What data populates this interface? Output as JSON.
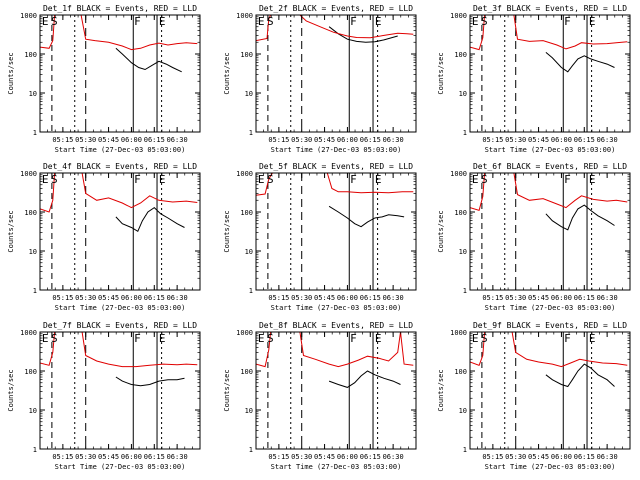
{
  "figure": {
    "ylabel": "Counts/sec",
    "xlabel": "Start Time (27-Dec-03 05:03:00)",
    "legend_text": "BLACK = Events, RED = LLD",
    "colors": {
      "events": "#000000",
      "lld": "#e00000",
      "axes": "#000000"
    },
    "y_ticks": [
      "1",
      "10",
      "100",
      "1000"
    ],
    "x_ticks": [
      "05:15",
      "05:30",
      "05:45",
      "06:00",
      "06:15",
      "06:30"
    ],
    "markers": [
      "E",
      "S",
      "F",
      "E"
    ]
  },
  "chart_data": [
    {
      "type": "line",
      "title": "Det_1f BLACK = Events, RED = LLD",
      "ylim": [
        1,
        1000
      ],
      "yscale": "log",
      "series": [
        {
          "name": "Events",
          "color": "#000000",
          "points": [
            [
              5.83,
              140
            ],
            [
              5.9,
              100
            ],
            [
              6.0,
              60
            ],
            [
              6.08,
              45
            ],
            [
              6.15,
              40
            ],
            [
              6.22,
              50
            ],
            [
              6.3,
              65
            ],
            [
              6.38,
              55
            ],
            [
              6.45,
              45
            ],
            [
              6.55,
              35
            ]
          ]
        },
        {
          "name": "LLD",
          "color": "#e00000",
          "points": [
            [
              5.0,
              150
            ],
            [
              5.1,
              140
            ],
            [
              5.14,
              220
            ],
            [
              5.16,
              1000
            ],
            [
              5.45,
              1000
            ],
            [
              5.5,
              240
            ],
            [
              5.6,
              220
            ],
            [
              5.75,
              200
            ],
            [
              5.9,
              160
            ],
            [
              6.0,
              130
            ],
            [
              6.1,
              140
            ],
            [
              6.2,
              170
            ],
            [
              6.3,
              190
            ],
            [
              6.4,
              170
            ],
            [
              6.5,
              185
            ],
            [
              6.6,
              195
            ],
            [
              6.72,
              185
            ]
          ]
        }
      ]
    },
    {
      "type": "line",
      "title": "Det_2f BLACK = Events, RED = LLD",
      "ylim": [
        1,
        1000
      ],
      "yscale": "log",
      "series": [
        {
          "name": "Events",
          "color": "#000000",
          "points": [
            [
              5.8,
              500
            ],
            [
              5.9,
              330
            ],
            [
              6.0,
              240
            ],
            [
              6.1,
              210
            ],
            [
              6.2,
              200
            ],
            [
              6.3,
              205
            ],
            [
              6.4,
              230
            ],
            [
              6.55,
              290
            ]
          ]
        },
        {
          "name": "LLD",
          "color": "#e00000",
          "points": [
            [
              5.0,
              220
            ],
            [
              5.12,
              250
            ],
            [
              5.14,
              800
            ],
            [
              5.16,
              1000
            ],
            [
              5.48,
              1000
            ],
            [
              5.55,
              700
            ],
            [
              5.7,
              500
            ],
            [
              5.85,
              360
            ],
            [
              6.0,
              290
            ],
            [
              6.1,
              265
            ],
            [
              6.25,
              260
            ],
            [
              6.4,
              300
            ],
            [
              6.55,
              340
            ],
            [
              6.65,
              330
            ],
            [
              6.72,
              320
            ]
          ]
        }
      ]
    },
    {
      "type": "line",
      "title": "Det_3f BLACK = Events, RED = LLD",
      "ylim": [
        1,
        1000
      ],
      "yscale": "log",
      "series": [
        {
          "name": "Events",
          "color": "#000000",
          "points": [
            [
              5.83,
              110
            ],
            [
              5.9,
              80
            ],
            [
              6.0,
              45
            ],
            [
              6.07,
              35
            ],
            [
              6.12,
              50
            ],
            [
              6.18,
              75
            ],
            [
              6.25,
              90
            ],
            [
              6.32,
              75
            ],
            [
              6.4,
              65
            ],
            [
              6.5,
              55
            ],
            [
              6.58,
              45
            ]
          ]
        },
        {
          "name": "LLD",
          "color": "#e00000",
          "points": [
            [
              5.0,
              150
            ],
            [
              5.1,
              130
            ],
            [
              5.14,
              260
            ],
            [
              5.16,
              1000
            ],
            [
              5.48,
              1000
            ],
            [
              5.52,
              240
            ],
            [
              5.65,
              210
            ],
            [
              5.8,
              220
            ],
            [
              5.95,
              170
            ],
            [
              6.05,
              135
            ],
            [
              6.15,
              160
            ],
            [
              6.22,
              195
            ],
            [
              6.35,
              180
            ],
            [
              6.5,
              185
            ],
            [
              6.6,
              195
            ],
            [
              6.72,
              205
            ]
          ]
        }
      ]
    },
    {
      "type": "line",
      "title": "Det_4f BLACK = Events, RED = LLD",
      "ylim": [
        1,
        1000
      ],
      "yscale": "log",
      "series": [
        {
          "name": "Events",
          "color": "#000000",
          "points": [
            [
              5.83,
              75
            ],
            [
              5.9,
              50
            ],
            [
              6.0,
              40
            ],
            [
              6.07,
              32
            ],
            [
              6.12,
              60
            ],
            [
              6.18,
              100
            ],
            [
              6.25,
              130
            ],
            [
              6.32,
              90
            ],
            [
              6.4,
              70
            ],
            [
              6.5,
              50
            ],
            [
              6.58,
              40
            ]
          ]
        },
        {
          "name": "LLD",
          "color": "#e00000",
          "points": [
            [
              5.0,
              120
            ],
            [
              5.1,
              100
            ],
            [
              5.14,
              200
            ],
            [
              5.16,
              1000
            ],
            [
              5.46,
              1000
            ],
            [
              5.5,
              300
            ],
            [
              5.62,
              200
            ],
            [
              5.75,
              230
            ],
            [
              5.9,
              170
            ],
            [
              6.0,
              130
            ],
            [
              6.1,
              170
            ],
            [
              6.2,
              260
            ],
            [
              6.3,
              200
            ],
            [
              6.45,
              180
            ],
            [
              6.6,
              190
            ],
            [
              6.72,
              175
            ]
          ]
        }
      ]
    },
    {
      "type": "line",
      "title": "Det_5f BLACK = Events, RED = LLD",
      "ylim": [
        1,
        1000
      ],
      "yscale": "log",
      "series": [
        {
          "name": "Events",
          "color": "#000000",
          "points": [
            [
              5.8,
              140
            ],
            [
              5.9,
              100
            ],
            [
              6.0,
              70
            ],
            [
              6.08,
              50
            ],
            [
              6.15,
              42
            ],
            [
              6.22,
              55
            ],
            [
              6.3,
              70
            ],
            [
              6.38,
              75
            ],
            [
              6.45,
              85
            ],
            [
              6.55,
              80
            ],
            [
              6.62,
              75
            ]
          ]
        },
        {
          "name": "LLD",
          "color": "#e00000",
          "points": [
            [
              5.0,
              270
            ],
            [
              5.1,
              290
            ],
            [
              5.14,
              700
            ],
            [
              5.18,
              1000
            ],
            [
              5.78,
              1000
            ],
            [
              5.83,
              400
            ],
            [
              5.9,
              330
            ],
            [
              6.0,
              330
            ],
            [
              6.15,
              310
            ],
            [
              6.3,
              320
            ],
            [
              6.45,
              310
            ],
            [
              6.6,
              330
            ],
            [
              6.72,
              330
            ]
          ]
        }
      ]
    },
    {
      "type": "line",
      "title": "Det_6f BLACK = Events, RED = LLD",
      "ylim": [
        1,
        1000
      ],
      "yscale": "log",
      "series": [
        {
          "name": "Events",
          "color": "#000000",
          "points": [
            [
              5.83,
              90
            ],
            [
              5.9,
              60
            ],
            [
              6.0,
              42
            ],
            [
              6.07,
              35
            ],
            [
              6.12,
              70
            ],
            [
              6.18,
              120
            ],
            [
              6.25,
              150
            ],
            [
              6.32,
              110
            ],
            [
              6.4,
              80
            ],
            [
              6.5,
              60
            ],
            [
              6.58,
              45
            ]
          ]
        },
        {
          "name": "LLD",
          "color": "#e00000",
          "points": [
            [
              5.0,
              130
            ],
            [
              5.1,
              110
            ],
            [
              5.14,
              250
            ],
            [
              5.16,
              1000
            ],
            [
              5.48,
              1000
            ],
            [
              5.52,
              280
            ],
            [
              5.65,
              200
            ],
            [
              5.8,
              220
            ],
            [
              5.95,
              160
            ],
            [
              6.05,
              130
            ],
            [
              6.15,
              200
            ],
            [
              6.22,
              260
            ],
            [
              6.35,
              210
            ],
            [
              6.5,
              190
            ],
            [
              6.6,
              200
            ],
            [
              6.72,
              180
            ]
          ]
        }
      ]
    },
    {
      "type": "line",
      "title": "Det_7f BLACK = Events, RED = LLD",
      "ylim": [
        1,
        1000
      ],
      "yscale": "log",
      "series": [
        {
          "name": "Events",
          "color": "#000000",
          "points": [
            [
              5.83,
              70
            ],
            [
              5.9,
              55
            ],
            [
              6.0,
              45
            ],
            [
              6.1,
              42
            ],
            [
              6.2,
              45
            ],
            [
              6.3,
              55
            ],
            [
              6.4,
              60
            ],
            [
              6.5,
              60
            ],
            [
              6.58,
              65
            ]
          ]
        },
        {
          "name": "LLD",
          "color": "#e00000",
          "points": [
            [
              5.0,
              160
            ],
            [
              5.1,
              140
            ],
            [
              5.14,
              300
            ],
            [
              5.16,
              1000
            ],
            [
              5.46,
              1000
            ],
            [
              5.5,
              250
            ],
            [
              5.62,
              180
            ],
            [
              5.75,
              150
            ],
            [
              5.9,
              130
            ],
            [
              6.05,
              130
            ],
            [
              6.2,
              140
            ],
            [
              6.35,
              150
            ],
            [
              6.5,
              145
            ],
            [
              6.6,
              150
            ],
            [
              6.72,
              145
            ]
          ]
        }
      ]
    },
    {
      "type": "line",
      "title": "Det_8f BLACK = Events, RED = LLD",
      "ylim": [
        1,
        1000
      ],
      "yscale": "log",
      "series": [
        {
          "name": "Events",
          "color": "#000000",
          "points": [
            [
              5.8,
              55
            ],
            [
              5.9,
              45
            ],
            [
              6.0,
              38
            ],
            [
              6.08,
              50
            ],
            [
              6.15,
              75
            ],
            [
              6.22,
              100
            ],
            [
              6.3,
              80
            ],
            [
              6.4,
              65
            ],
            [
              6.5,
              55
            ],
            [
              6.58,
              45
            ]
          ]
        },
        {
          "name": "LLD",
          "color": "#e00000",
          "points": [
            [
              5.0,
              150
            ],
            [
              5.1,
              130
            ],
            [
              5.14,
              350
            ],
            [
              5.16,
              1000
            ],
            [
              5.48,
              1000
            ],
            [
              5.52,
              250
            ],
            [
              5.65,
              200
            ],
            [
              5.8,
              150
            ],
            [
              5.9,
              130
            ],
            [
              6.0,
              150
            ],
            [
              6.12,
              190
            ],
            [
              6.22,
              240
            ],
            [
              6.35,
              210
            ],
            [
              6.45,
              180
            ],
            [
              6.55,
              300
            ],
            [
              6.58,
              1000
            ],
            [
              6.62,
              150
            ],
            [
              6.72,
              140
            ]
          ]
        }
      ]
    },
    {
      "type": "line",
      "title": "Det_9f BLACK = Events, RED = LLD",
      "ylim": [
        1,
        1000
      ],
      "yscale": "log",
      "series": [
        {
          "name": "Events",
          "color": "#000000",
          "points": [
            [
              5.83,
              80
            ],
            [
              5.9,
              60
            ],
            [
              6.0,
              45
            ],
            [
              6.07,
              40
            ],
            [
              6.12,
              60
            ],
            [
              6.18,
              100
            ],
            [
              6.25,
              150
            ],
            [
              6.32,
              120
            ],
            [
              6.4,
              80
            ],
            [
              6.5,
              60
            ],
            [
              6.58,
              40
            ]
          ]
        },
        {
          "name": "LLD",
          "color": "#e00000",
          "points": [
            [
              5.0,
              170
            ],
            [
              5.1,
              140
            ],
            [
              5.14,
              250
            ],
            [
              5.16,
              1000
            ],
            [
              5.46,
              1000
            ],
            [
              5.5,
              300
            ],
            [
              5.62,
              200
            ],
            [
              5.75,
              170
            ],
            [
              5.9,
              150
            ],
            [
              6.0,
              130
            ],
            [
              6.1,
              160
            ],
            [
              6.2,
              200
            ],
            [
              6.3,
              180
            ],
            [
              6.45,
              160
            ],
            [
              6.6,
              155
            ],
            [
              6.72,
              140
            ]
          ]
        }
      ]
    }
  ]
}
